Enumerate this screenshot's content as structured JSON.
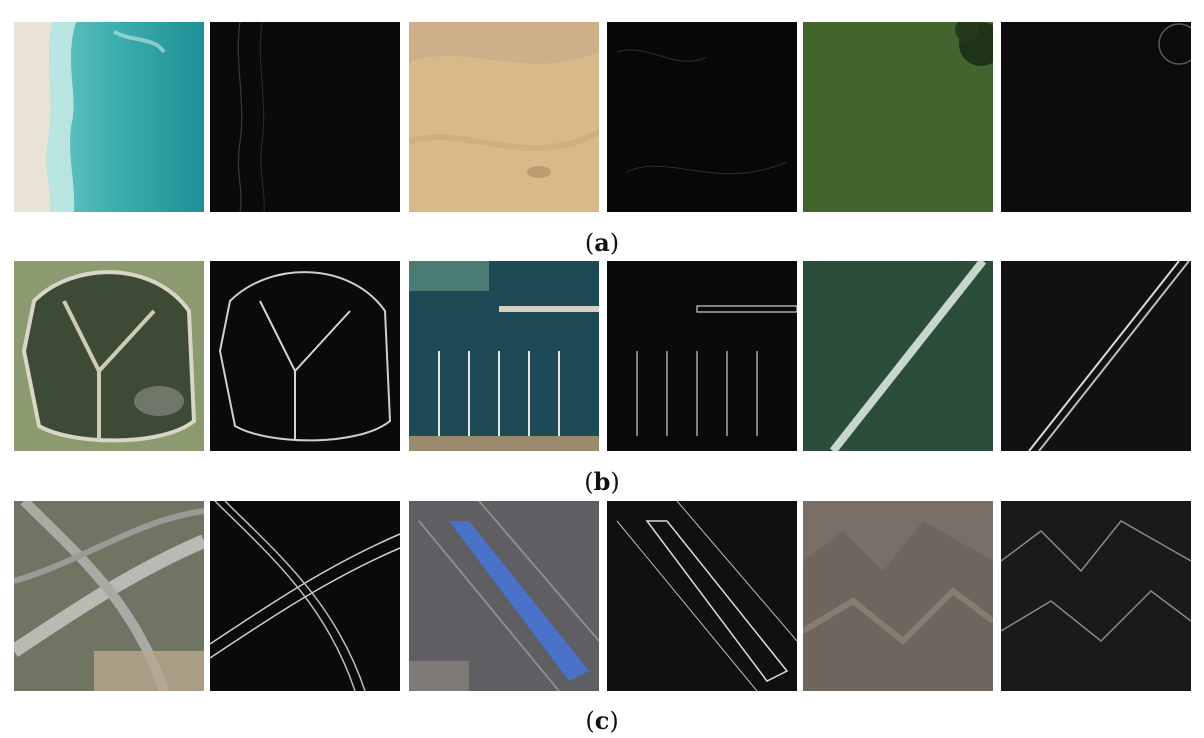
{
  "figure": {
    "rows": [
      {
        "caption_open": "(",
        "caption_letter": "a",
        "caption_close": ")",
        "images": [
          {
            "name": "beach-rgb",
            "kind": "rgb"
          },
          {
            "name": "beach-edge",
            "kind": "edge-map"
          },
          {
            "name": "desert-rgb",
            "kind": "rgb"
          },
          {
            "name": "desert-edge",
            "kind": "edge-map"
          },
          {
            "name": "meadow-rgb",
            "kind": "rgb"
          },
          {
            "name": "meadow-edge",
            "kind": "edge-map"
          }
        ]
      },
      {
        "caption_open": "(",
        "caption_letter": "b",
        "caption_close": ")",
        "images": [
          {
            "name": "reservoir-rgb",
            "kind": "rgb"
          },
          {
            "name": "reservoir-edge",
            "kind": "edge-map"
          },
          {
            "name": "harbor-rgb",
            "kind": "rgb"
          },
          {
            "name": "harbor-edge",
            "kind": "edge-map"
          },
          {
            "name": "bridge-rgb",
            "kind": "rgb"
          },
          {
            "name": "bridge-edge",
            "kind": "edge-map"
          }
        ]
      },
      {
        "caption_open": "(",
        "caption_letter": "c",
        "caption_close": ")",
        "images": [
          {
            "name": "interchange-rgb",
            "kind": "rgb"
          },
          {
            "name": "interchange-edge",
            "kind": "edge-map"
          },
          {
            "name": "railyard-rgb",
            "kind": "rgb"
          },
          {
            "name": "railyard-edge",
            "kind": "edge-map"
          },
          {
            "name": "mountains-rgb",
            "kind": "rgb"
          },
          {
            "name": "mountains-edge",
            "kind": "edge-map"
          }
        ]
      }
    ]
  }
}
